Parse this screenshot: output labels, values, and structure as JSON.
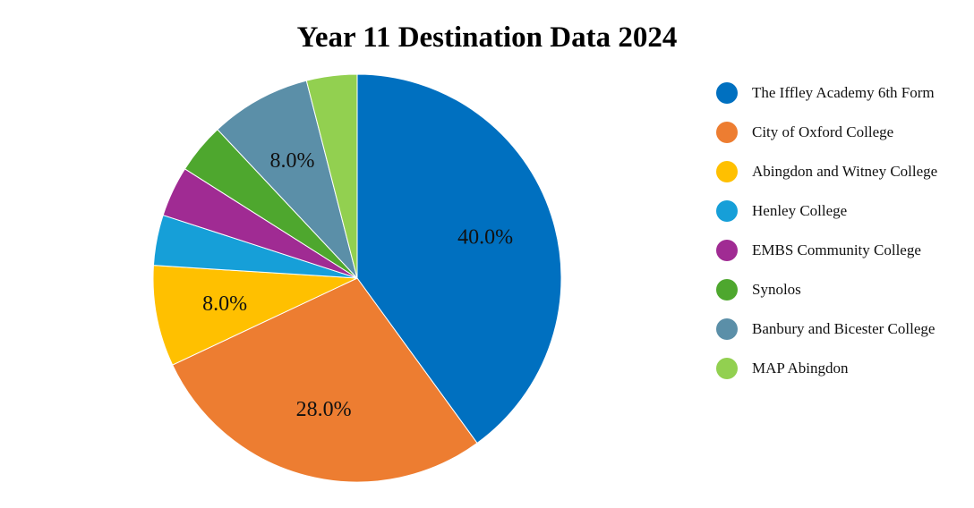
{
  "chart_data": {
    "type": "pie",
    "title": "Year 11 Destination Data 2024",
    "slices": [
      {
        "label": "The Iffley Academy 6th Form",
        "value": 40.0,
        "color": "#0070C0",
        "data_label": "40.0%"
      },
      {
        "label": "City of Oxford College",
        "value": 28.0,
        "color": "#ED7D31",
        "data_label": "28.0%"
      },
      {
        "label": "Abingdon and Witney College",
        "value": 8.0,
        "color": "#FFC000",
        "data_label": "8.0%"
      },
      {
        "label": "Henley College",
        "value": 4.0,
        "color": "#169FD8",
        "data_label": ""
      },
      {
        "label": "EMBS Community College",
        "value": 4.0,
        "color": "#A02B93",
        "data_label": ""
      },
      {
        "label": "Synolos",
        "value": 4.0,
        "color": "#4EA72E",
        "data_label": ""
      },
      {
        "label": "Banbury and Bicester College",
        "value": 8.0,
        "color": "#5B8FA8",
        "data_label": "8.0%"
      },
      {
        "label": "MAP Abingdon",
        "value": 4.0,
        "color": "#92D050",
        "data_label": ""
      }
    ],
    "legend_position": "right"
  }
}
